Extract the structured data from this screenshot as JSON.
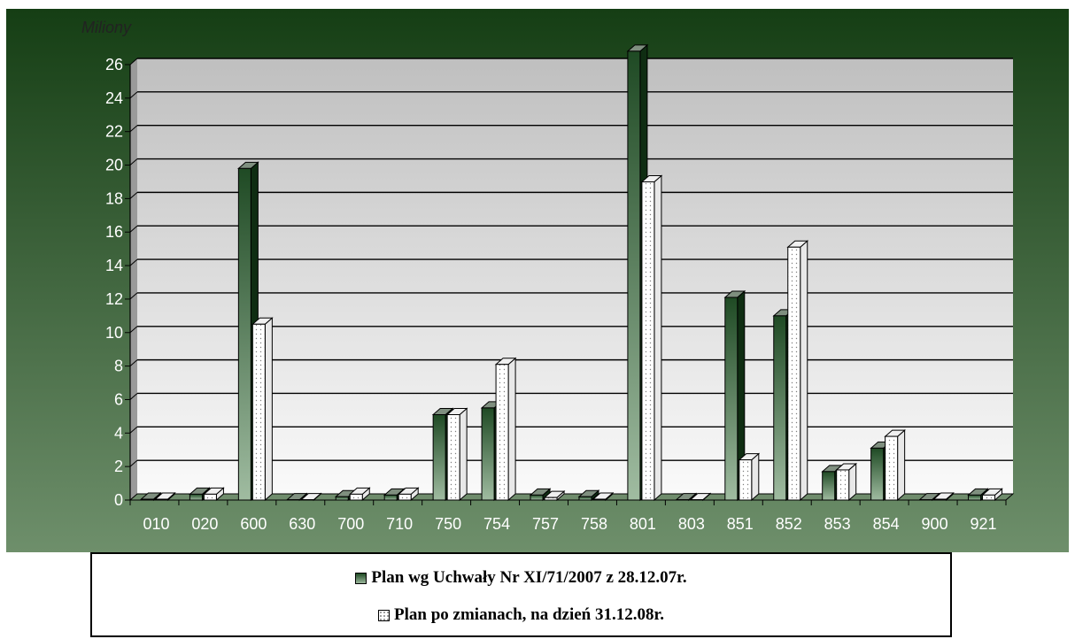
{
  "chart_data": {
    "type": "bar",
    "title": "",
    "ylabel": "",
    "xlabel": "",
    "unit_label": "Miliony",
    "ylim": [
      0,
      26
    ],
    "yticks": [
      "0",
      "2",
      "4",
      "6",
      "8",
      "10",
      "12",
      "14",
      "16",
      "18",
      "20",
      "22",
      "24",
      "26"
    ],
    "categories": [
      "010",
      "020",
      "600",
      "630",
      "700",
      "710",
      "750",
      "754",
      "757",
      "758",
      "801",
      "803",
      "851",
      "852",
      "853",
      "854",
      "900",
      "921"
    ],
    "series": [
      {
        "name": "Plan wg Uchwały Nr XI/71/2007 z 28.12.07r.",
        "values": [
          0.05,
          0.35,
          19.8,
          0.02,
          0.2,
          0.3,
          5.1,
          5.5,
          0.3,
          0.2,
          26.8,
          0.02,
          12.1,
          11.0,
          1.7,
          3.1,
          0.02,
          0.3
        ]
      },
      {
        "name": "Plan po zmianach, na dzień 31.12.08r.",
        "values": [
          0.05,
          0.35,
          10.5,
          0.02,
          0.35,
          0.35,
          5.1,
          8.1,
          0.15,
          0.05,
          19.0,
          0.02,
          2.4,
          15.1,
          1.8,
          3.8,
          0.05,
          0.3
        ]
      }
    ],
    "grid": true,
    "legend_position": "bottom",
    "colors": {
      "background_top": "#153e14",
      "background_bottom": "#6e8f6b",
      "plot_top": "#c0c0c0",
      "plot_bottom": "#fafafa",
      "series1_top": "#1f4a24",
      "series1_bottom": "#9ab69b",
      "series2": "#ffffff"
    }
  },
  "legend": {
    "item1": "Plan wg Uchwały Nr XI/71/2007 z 28.12.07r.",
    "item2": "Plan po zmianach, na dzień 31.12.08r."
  }
}
